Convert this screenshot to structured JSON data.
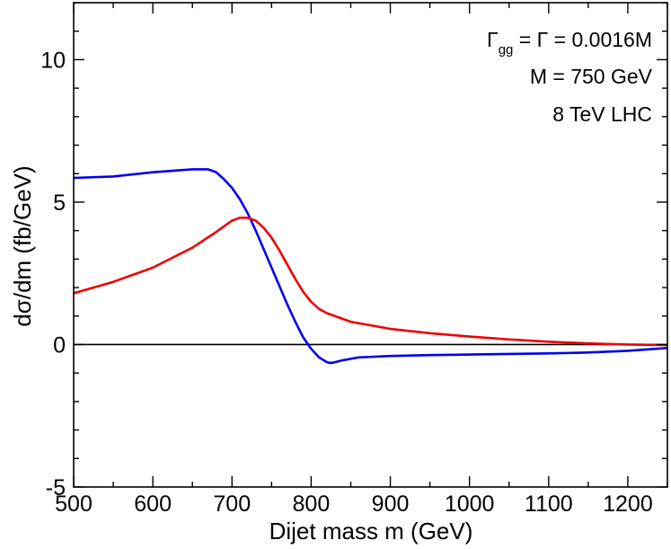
{
  "chart_data": {
    "type": "line",
    "xlabel": "Dijet mass m  (GeV)",
    "ylabel": "dσ/dm   (fb/GeV)",
    "xlim": [
      500,
      1250
    ],
    "ylim": [
      -5,
      12
    ],
    "x_ticks": [
      500,
      600,
      700,
      800,
      900,
      1000,
      1100,
      1200
    ],
    "y_ticks": [
      -5,
      0,
      5,
      10
    ],
    "grid": false,
    "annotations": {
      "gamma_symbol": "Γ",
      "gamma_subscript": "gg",
      "gamma_rest": " = Γ = 0.0016M",
      "mass_line": "M = 750 GeV",
      "lhc_line": "8 TeV LHC"
    },
    "reference_line": {
      "y": 0,
      "color": "#000000"
    },
    "series": [
      {
        "color": "#0000ee",
        "x": [
          500,
          550,
          600,
          650,
          670,
          680,
          690,
          700,
          710,
          720,
          730,
          740,
          750,
          760,
          770,
          780,
          790,
          800,
          810,
          820,
          825,
          830,
          840,
          860,
          900,
          950,
          1000,
          1050,
          1100,
          1150,
          1200,
          1250
        ],
        "y": [
          5.85,
          5.9,
          6.05,
          6.15,
          6.15,
          6.05,
          5.8,
          5.5,
          5.1,
          4.6,
          4.0,
          3.35,
          2.7,
          2.05,
          1.4,
          0.8,
          0.25,
          -0.15,
          -0.45,
          -0.62,
          -0.65,
          -0.62,
          -0.55,
          -0.45,
          -0.4,
          -0.37,
          -0.35,
          -0.33,
          -0.31,
          -0.28,
          -0.22,
          -0.12
        ]
      },
      {
        "color": "#ee0000",
        "x": [
          500,
          550,
          600,
          650,
          680,
          700,
          710,
          720,
          730,
          740,
          750,
          760,
          770,
          780,
          790,
          800,
          810,
          820,
          830,
          850,
          900,
          950,
          1000,
          1050,
          1100,
          1150,
          1200,
          1250
        ],
        "y": [
          1.8,
          2.2,
          2.7,
          3.4,
          3.95,
          4.35,
          4.45,
          4.45,
          4.35,
          4.1,
          3.75,
          3.3,
          2.8,
          2.3,
          1.85,
          1.5,
          1.25,
          1.1,
          1.0,
          0.8,
          0.55,
          0.4,
          0.28,
          0.18,
          0.1,
          0.04,
          0.0,
          -0.02
        ]
      }
    ]
  }
}
